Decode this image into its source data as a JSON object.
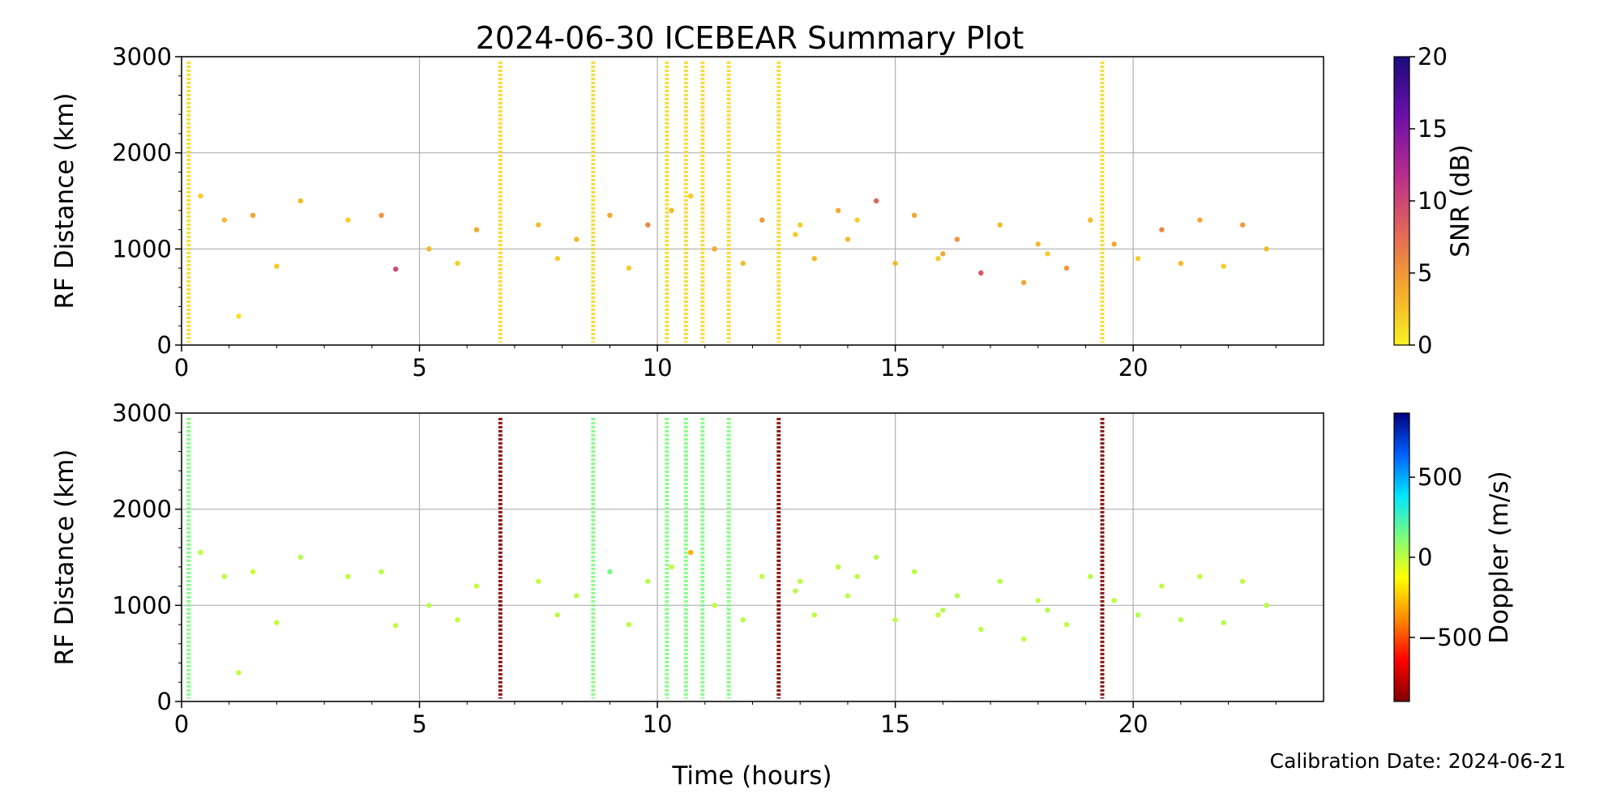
{
  "title": "2024-06-30 ICEBEAR Summary Plot",
  "calibration_note": "Calibration Date: 2024-06-21",
  "colors": {
    "snr_scale": [
      "#f8f223",
      "#f4a72e",
      "#e2645a",
      "#b62a8f",
      "#6a0fab",
      "#1a0b7a"
    ],
    "doppler_scale": [
      "#7f0000",
      "#ff0000",
      "#ff8a00",
      "#ffff00",
      "#7cfc7c",
      "#00e5ff",
      "#0060ff",
      "#00007f"
    ]
  },
  "chart_data": [
    {
      "type": "scatter",
      "name": "snr-panel",
      "xlabel": "",
      "ylabel": "RF Distance (km)",
      "xlim": [
        0,
        24
      ],
      "ylim": [
        0,
        3000
      ],
      "x_ticks": [
        0,
        5,
        10,
        15,
        20
      ],
      "y_ticks": [
        0,
        1000,
        2000,
        3000
      ],
      "grid": true,
      "colorbar": {
        "label": "SNR (dB)",
        "range": [
          0,
          20
        ],
        "ticks": [
          0,
          5,
          10,
          15,
          20
        ]
      },
      "vertical_streaks_hours": [
        0.15,
        6.7,
        8.65,
        10.2,
        10.6,
        10.95,
        11.5,
        12.55,
        19.35
      ],
      "points": [
        [
          0.4,
          1550,
          2
        ],
        [
          0.9,
          1300,
          3
        ],
        [
          1.2,
          300,
          1
        ],
        [
          1.5,
          1350,
          4
        ],
        [
          2.0,
          820,
          2
        ],
        [
          2.5,
          1500,
          3
        ],
        [
          3.5,
          1300,
          2
        ],
        [
          4.2,
          1350,
          5
        ],
        [
          4.5,
          790,
          10
        ],
        [
          5.2,
          1000,
          3
        ],
        [
          5.8,
          850,
          2
        ],
        [
          6.2,
          1200,
          4
        ],
        [
          7.5,
          1250,
          3
        ],
        [
          7.9,
          900,
          2
        ],
        [
          8.3,
          1100,
          3
        ],
        [
          9.0,
          1350,
          4
        ],
        [
          9.4,
          800,
          2
        ],
        [
          9.8,
          1250,
          6
        ],
        [
          10.3,
          1400,
          3
        ],
        [
          10.7,
          1550,
          2
        ],
        [
          11.2,
          1000,
          4
        ],
        [
          11.8,
          850,
          3
        ],
        [
          12.2,
          1300,
          5
        ],
        [
          12.9,
          1150,
          2
        ],
        [
          13.3,
          900,
          3
        ],
        [
          13.8,
          1400,
          4
        ],
        [
          14.2,
          1300,
          2
        ],
        [
          14.6,
          1500,
          8
        ],
        [
          15.0,
          850,
          3
        ],
        [
          15.4,
          1350,
          4
        ],
        [
          15.9,
          900,
          2
        ],
        [
          16.3,
          1100,
          5
        ],
        [
          16.8,
          750,
          9
        ],
        [
          17.2,
          1250,
          3
        ],
        [
          17.7,
          650,
          4
        ],
        [
          18.2,
          950,
          2
        ],
        [
          18.6,
          800,
          5
        ],
        [
          19.1,
          1300,
          3
        ],
        [
          19.6,
          1050,
          4
        ],
        [
          20.1,
          900,
          2
        ],
        [
          20.6,
          1200,
          6
        ],
        [
          21.0,
          850,
          3
        ],
        [
          21.4,
          1300,
          4
        ],
        [
          21.9,
          820,
          2
        ],
        [
          22.3,
          1250,
          5
        ],
        [
          22.8,
          1000,
          3
        ],
        [
          14.0,
          1100,
          3
        ],
        [
          16.0,
          950,
          4
        ],
        [
          18.0,
          1050,
          3
        ],
        [
          13.0,
          1250,
          2
        ]
      ]
    },
    {
      "type": "scatter",
      "name": "doppler-panel",
      "xlabel": "Time (hours)",
      "ylabel": "RF Distance (km)",
      "xlim": [
        0,
        24
      ],
      "ylim": [
        0,
        3000
      ],
      "x_ticks": [
        0,
        5,
        10,
        15,
        20
      ],
      "y_ticks": [
        0,
        1000,
        2000,
        3000
      ],
      "grid": true,
      "colorbar": {
        "label": "Doppler (m/s)",
        "range": [
          -900,
          900
        ],
        "ticks": [
          -500,
          0,
          500
        ]
      },
      "vertical_streaks_hours": [
        0.15,
        6.7,
        8.65,
        10.2,
        10.6,
        10.95,
        11.5,
        12.55,
        19.35
      ],
      "points": [
        [
          0.4,
          1550,
          0
        ],
        [
          0.9,
          1300,
          10
        ],
        [
          1.2,
          300,
          0
        ],
        [
          1.5,
          1350,
          -20
        ],
        [
          2.0,
          820,
          0
        ],
        [
          2.5,
          1500,
          20
        ],
        [
          3.5,
          1300,
          0
        ],
        [
          4.2,
          1350,
          10
        ],
        [
          4.5,
          790,
          0
        ],
        [
          5.2,
          1000,
          20
        ],
        [
          5.8,
          850,
          0
        ],
        [
          6.2,
          1200,
          -10
        ],
        [
          7.5,
          1250,
          0
        ],
        [
          7.9,
          900,
          10
        ],
        [
          8.3,
          1100,
          0
        ],
        [
          9.0,
          1350,
          150
        ],
        [
          9.4,
          800,
          0
        ],
        [
          9.8,
          1250,
          20
        ],
        [
          10.3,
          1400,
          0
        ],
        [
          10.7,
          1550,
          -300
        ],
        [
          11.2,
          1000,
          0
        ],
        [
          11.8,
          850,
          10
        ],
        [
          12.2,
          1300,
          0
        ],
        [
          12.9,
          1150,
          20
        ],
        [
          13.3,
          900,
          0
        ],
        [
          13.8,
          1400,
          10
        ],
        [
          14.2,
          1300,
          0
        ],
        [
          14.6,
          1500,
          20
        ],
        [
          15.0,
          850,
          0
        ],
        [
          15.4,
          1350,
          10
        ],
        [
          15.9,
          900,
          0
        ],
        [
          16.3,
          1100,
          20
        ],
        [
          16.8,
          750,
          0
        ],
        [
          17.2,
          1250,
          10
        ],
        [
          17.7,
          650,
          0
        ],
        [
          18.2,
          950,
          20
        ],
        [
          18.6,
          800,
          0
        ],
        [
          19.1,
          1300,
          10
        ],
        [
          19.6,
          1050,
          0
        ],
        [
          20.1,
          900,
          20
        ],
        [
          20.6,
          1200,
          0
        ],
        [
          21.0,
          850,
          10
        ],
        [
          21.4,
          1300,
          0
        ],
        [
          21.9,
          820,
          20
        ],
        [
          22.3,
          1250,
          0
        ],
        [
          22.8,
          1000,
          10
        ],
        [
          14.0,
          1100,
          0
        ],
        [
          16.0,
          950,
          20
        ],
        [
          18.0,
          1050,
          0
        ],
        [
          13.0,
          1250,
          10
        ]
      ]
    }
  ]
}
